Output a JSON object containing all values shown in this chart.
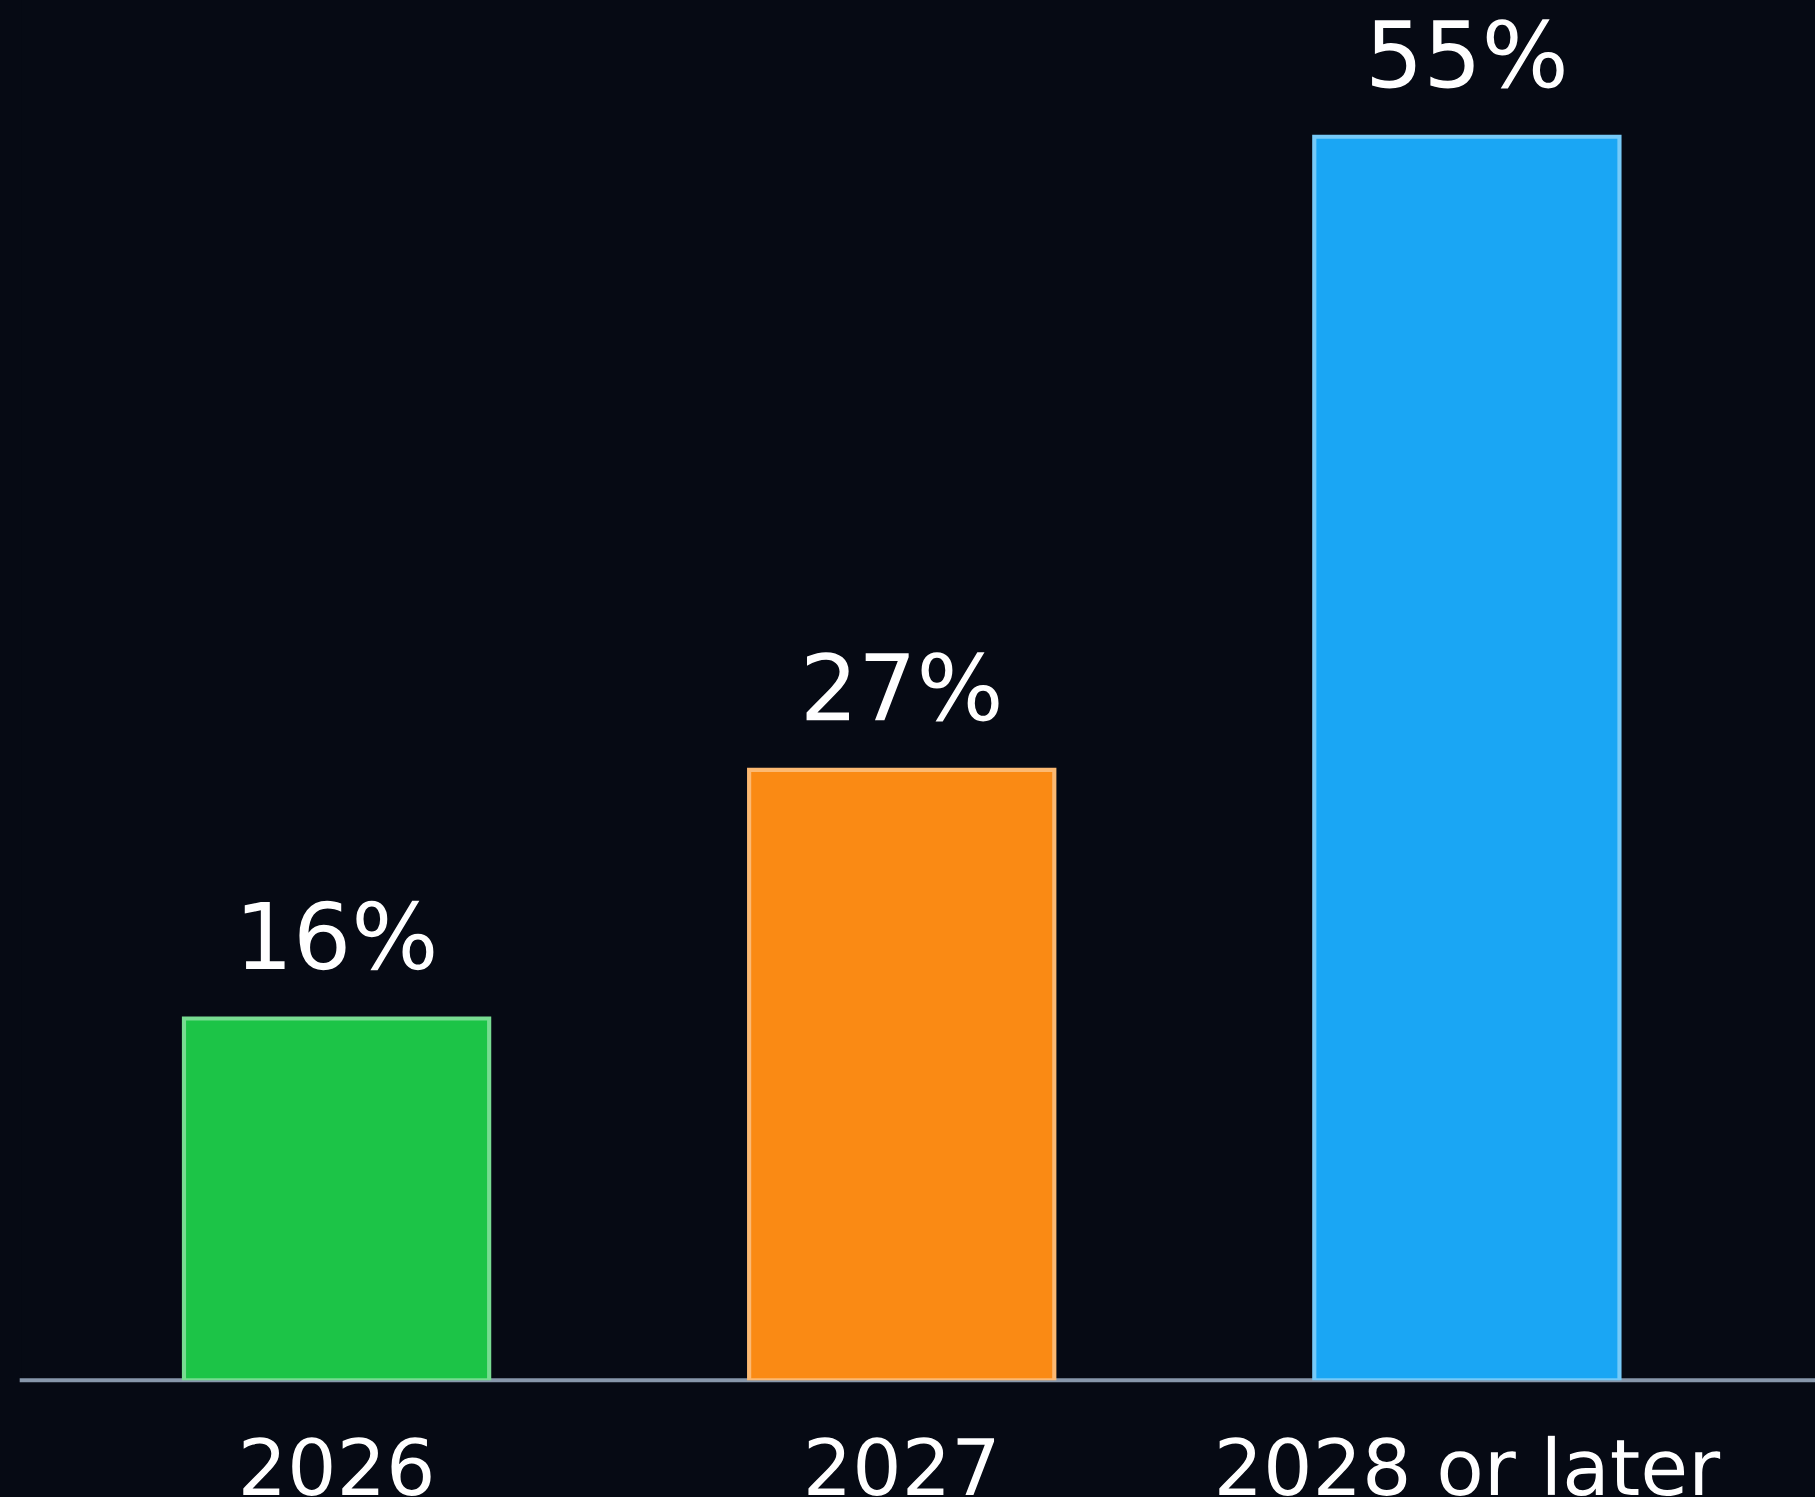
{
  "chart_data": {
    "type": "bar",
    "categories": [
      "2026",
      "2027",
      "2028 or later"
    ],
    "values": [
      16,
      27,
      55
    ],
    "value_labels": [
      "16%",
      "27%",
      "55%"
    ],
    "colors": [
      "#1cc447",
      "#fa8a14",
      "#1aa6f4"
    ],
    "tick_labels": "x"
  }
}
